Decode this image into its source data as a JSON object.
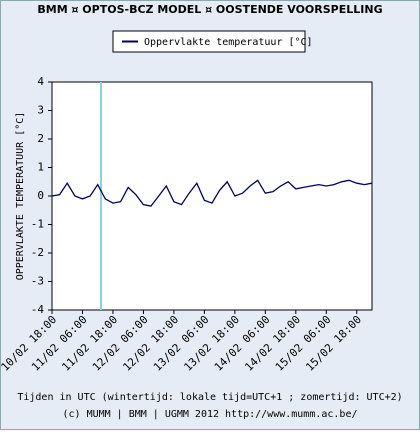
{
  "chart_data": {
    "type": "line",
    "title": "BMM ¤ OPTOS-BCZ MODEL ¤ OOSTENDE VOORSPELLING",
    "y_label": "OPPERVLAKTE TEMPERATUUR [°C]",
    "x_label": "Tijden in UTC (wintertijd: lokale tijd=UTC+1 ; zomertijd: UTC+2)",
    "footer": "(c) MUMM | BMM | UGMM 2012 http://www.mumm.ac.be/",
    "categories": [
      "10/02 18:00",
      null,
      null,
      null,
      "11/02 06:00",
      null,
      null,
      null,
      "11/02 18:00",
      null,
      null,
      null,
      "12/02 06:00",
      null,
      null,
      null,
      "12/02 18:00",
      null,
      null,
      null,
      "13/02 06:00",
      null,
      null,
      null,
      "13/02 18:00",
      null,
      null,
      null,
      "14/02 06:00",
      null,
      null,
      null,
      "14/02 18:00",
      null,
      null,
      null,
      "15/02 06:00",
      null,
      null,
      null,
      "15/02 18:00",
      null,
      null
    ],
    "series": [
      {
        "name": "Oppervlakte temperatuur [°C]",
        "color": "#000066",
        "values": [
          0.0,
          0.05,
          0.45,
          0.0,
          -0.1,
          0.0,
          0.4,
          -0.1,
          -0.25,
          -0.2,
          0.3,
          0.05,
          -0.3,
          -0.35,
          0.0,
          0.35,
          -0.2,
          -0.3,
          0.1,
          0.45,
          -0.15,
          -0.25,
          0.2,
          0.5,
          0.0,
          0.1,
          0.35,
          0.55,
          0.1,
          0.15,
          0.35,
          0.5,
          0.25,
          0.3,
          0.35,
          0.4,
          0.35,
          0.4,
          0.5,
          0.55,
          0.45,
          0.4,
          0.45
        ]
      }
    ],
    "ylim": [
      -4,
      4
    ],
    "yticks": [
      -4,
      -3,
      -2,
      -1,
      0,
      1,
      2,
      3,
      4
    ],
    "grid": false
  }
}
